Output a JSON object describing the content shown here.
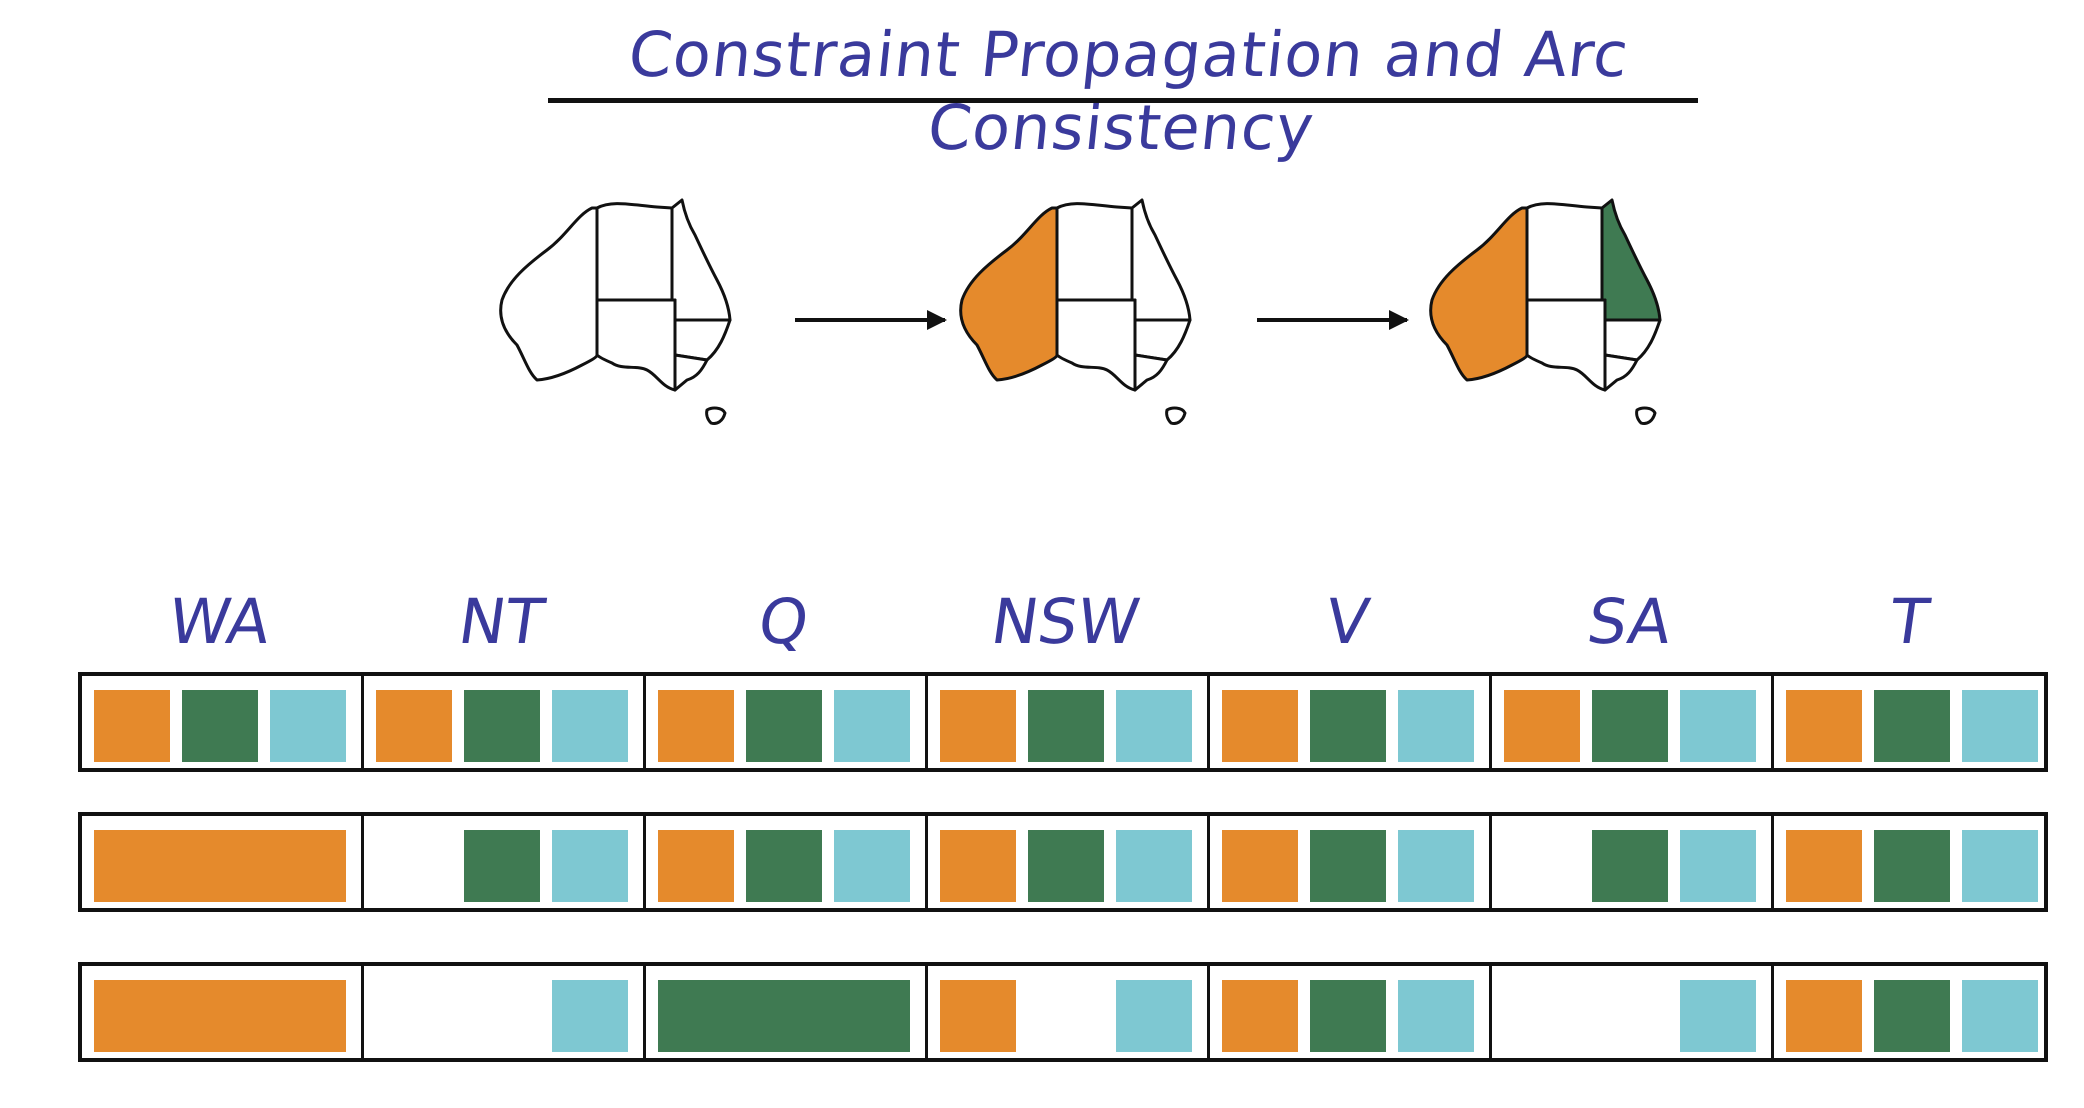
{
  "title": "Constraint Propagation and Arc Consistency",
  "colors": {
    "title": "#3a3a9c",
    "red": "#e58a2c",
    "green": "#3f7a52",
    "blue": "#7ec8d2",
    "outline": "#111111"
  },
  "maps": [
    {
      "WA": "none",
      "NT": "none",
      "Q": "none",
      "SA": "none",
      "NSW": "none",
      "V": "none",
      "T": "none"
    },
    {
      "WA": "red",
      "NT": "none",
      "Q": "none",
      "SA": "none",
      "NSW": "none",
      "V": "none",
      "T": "none"
    },
    {
      "WA": "red",
      "NT": "none",
      "Q": "green",
      "SA": "none",
      "NSW": "none",
      "V": "none",
      "T": "none"
    }
  ],
  "variables": [
    "WA",
    "NT",
    "Q",
    "NSW",
    "V",
    "SA",
    "T"
  ],
  "domain_rows": [
    {
      "WA": [
        "red",
        "green",
        "blue"
      ],
      "NT": [
        "red",
        "green",
        "blue"
      ],
      "Q": [
        "red",
        "green",
        "blue"
      ],
      "NSW": [
        "red",
        "green",
        "blue"
      ],
      "V": [
        "red",
        "green",
        "blue"
      ],
      "SA": [
        "red",
        "green",
        "blue"
      ],
      "T": [
        "red",
        "green",
        "blue"
      ]
    },
    {
      "WA": [
        "red"
      ],
      "NT": [
        "green",
        "blue"
      ],
      "Q": [
        "red",
        "green",
        "blue"
      ],
      "NSW": [
        "red",
        "green",
        "blue"
      ],
      "V": [
        "red",
        "green",
        "blue"
      ],
      "SA": [
        "green",
        "blue"
      ],
      "T": [
        "red",
        "green",
        "blue"
      ]
    },
    {
      "WA": [
        "red"
      ],
      "NT": [
        "blue"
      ],
      "Q": [
        "green"
      ],
      "NSW": [
        "red",
        "blue"
      ],
      "V": [
        "red",
        "green",
        "blue"
      ],
      "SA": [
        "blue"
      ],
      "T": [
        "red",
        "green",
        "blue"
      ]
    }
  ]
}
